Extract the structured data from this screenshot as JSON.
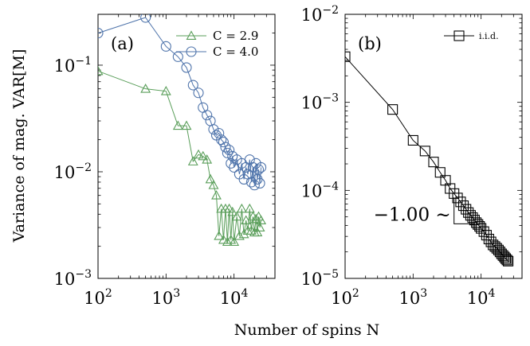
{
  "figure": {
    "ylabel": "Variance of mag. VAR[M]",
    "xlabel": "Number of spins N"
  },
  "chart_data": [
    {
      "type": "line",
      "panel_label": "(a)",
      "x_scale": "log",
      "y_scale": "log",
      "xlim": [
        100,
        40000
      ],
      "ylim": [
        0.001,
        0.3
      ],
      "x_ticks": [
        {
          "value": 100,
          "base": "10",
          "exp": "2"
        },
        {
          "value": 1000,
          "base": "10",
          "exp": "3"
        },
        {
          "value": 10000,
          "base": "10",
          "exp": "4"
        }
      ],
      "y_ticks": [
        {
          "value": 0.001,
          "base": "10",
          "exp": "−3"
        },
        {
          "value": 0.01,
          "base": "10",
          "exp": "−2"
        },
        {
          "value": 0.1,
          "base": "10",
          "exp": "−1"
        }
      ],
      "legend_position": "top-right",
      "series": [
        {
          "name": "C = 2.9",
          "color": "#5a9e5a",
          "marker": "triangle",
          "x": [
            100,
            500,
            1000,
            1500,
            2000,
            2500,
            3000,
            3500,
            4000,
            4500,
            5000,
            5500,
            6000,
            6500,
            7000,
            7500,
            8000,
            8500,
            9000,
            9500,
            10000,
            11000,
            12000,
            13000,
            14000,
            15000,
            16000,
            17000,
            18000,
            19000,
            20000,
            21000,
            22000,
            23000,
            24000,
            25000
          ],
          "y": [
            0.088,
            0.06,
            0.057,
            0.027,
            0.027,
            0.0125,
            0.0145,
            0.014,
            0.013,
            0.0085,
            0.0075,
            0.006,
            0.0025,
            0.0045,
            0.0023,
            0.0045,
            0.0022,
            0.0045,
            0.0023,
            0.0042,
            0.0022,
            0.0038,
            0.0025,
            0.0045,
            0.0026,
            0.0035,
            0.0028,
            0.0045,
            0.0028,
            0.0038,
            0.0027,
            0.0036,
            0.0027,
            0.0038,
            0.003,
            0.0035
          ]
        },
        {
          "name": "C = 4.0",
          "color": "#4f74ab",
          "marker": "circle",
          "x": [
            100,
            500,
            1000,
            1500,
            2000,
            2500,
            3000,
            3500,
            4000,
            4500,
            5000,
            5500,
            6000,
            6500,
            7000,
            7500,
            8000,
            8500,
            9000,
            9500,
            10000,
            11000,
            12000,
            13000,
            14000,
            15000,
            16000,
            17000,
            18000,
            19000,
            20000,
            21000,
            22000,
            23000,
            24000,
            25000
          ],
          "y": [
            0.2,
            0.28,
            0.15,
            0.12,
            0.095,
            0.065,
            0.055,
            0.04,
            0.034,
            0.03,
            0.025,
            0.022,
            0.023,
            0.02,
            0.019,
            0.017,
            0.015,
            0.016,
            0.012,
            0.014,
            0.011,
            0.013,
            0.0095,
            0.012,
            0.0085,
            0.011,
            0.0095,
            0.013,
            0.008,
            0.011,
            0.0075,
            0.012,
            0.0085,
            0.0105,
            0.0078,
            0.011
          ]
        }
      ]
    },
    {
      "type": "line",
      "panel_label": "(b)",
      "x_scale": "log",
      "y_scale": "log",
      "xlim": [
        100,
        40000
      ],
      "ylim": [
        1e-05,
        0.01
      ],
      "x_ticks": [
        {
          "value": 100,
          "base": "10",
          "exp": "2"
        },
        {
          "value": 1000,
          "base": "10",
          "exp": "3"
        },
        {
          "value": 10000,
          "base": "10",
          "exp": "4"
        }
      ],
      "y_ticks": [
        {
          "value": 1e-05,
          "base": "10",
          "exp": "−5"
        },
        {
          "value": 0.0001,
          "base": "10",
          "exp": "−4"
        },
        {
          "value": 0.001,
          "base": "10",
          "exp": "−3"
        },
        {
          "value": 0.01,
          "base": "10",
          "exp": "−2"
        }
      ],
      "legend_position": "top-right",
      "annotation": {
        "text": "−1.00 ∼",
        "triangle_x": [
          4000,
          8000
        ],
        "triangle_y": [
          8.33e-05,
          4.17e-05
        ]
      },
      "series": [
        {
          "name": "i.i.d.",
          "color": "#000000",
          "marker": "square",
          "x": [
            100,
            500,
            1000,
            1500,
            2000,
            2500,
            3000,
            3500,
            4000,
            4500,
            5000,
            5500,
            6000,
            6500,
            7000,
            7500,
            8000,
            8500,
            9000,
            9500,
            10000,
            11000,
            12000,
            13000,
            14000,
            15000,
            16000,
            17000,
            18000,
            19000,
            20000,
            21000,
            22000,
            23000,
            24000,
            25000
          ],
          "y": [
            0.0033,
            0.00083,
            0.00037,
            0.00028,
            0.00021,
            0.00016,
            0.00013,
            0.000105,
            9.2e-05,
            8.2e-05,
            7.4e-05,
            6.7e-05,
            6.1e-05,
            5.6e-05,
            5.2e-05,
            4.9e-05,
            4.6e-05,
            4.3e-05,
            4.1e-05,
            3.9e-05,
            3.7e-05,
            3.4e-05,
            3.1e-05,
            2.8e-05,
            2.6e-05,
            2.4e-05,
            2.3e-05,
            2.2e-05,
            2.1e-05,
            2e-05,
            1.9e-05,
            1.82e-05,
            1.75e-05,
            1.68e-05,
            1.62e-05,
            1.57e-05
          ]
        }
      ]
    }
  ]
}
